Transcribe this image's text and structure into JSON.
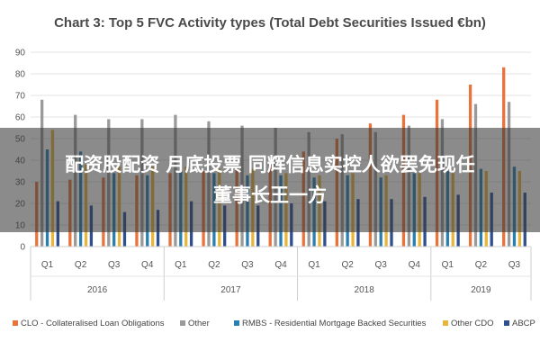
{
  "chart_data": {
    "type": "bar",
    "title": "Chart 3: Top 5 FVC Activity types (Total Debt Securities Issued €bn)",
    "ylim": [
      0,
      90
    ],
    "yticks": [
      0,
      10,
      20,
      30,
      40,
      50,
      60,
      70,
      80,
      90
    ],
    "grid": true,
    "legend_position": "bottom",
    "categories": [
      "Q1",
      "Q2",
      "Q3",
      "Q4",
      "Q1",
      "Q2",
      "Q3",
      "Q4",
      "Q1",
      "Q2",
      "Q3",
      "Q4",
      "Q1",
      "Q2",
      "Q3"
    ],
    "years": [
      {
        "label": "2016",
        "quarters": 4
      },
      {
        "label": "2017",
        "quarters": 4
      },
      {
        "label": "2018",
        "quarters": 4
      },
      {
        "label": "2019",
        "quarters": 3
      }
    ],
    "series": [
      {
        "name": "CLO - Collateralised Loan Obligations",
        "color": "#e8743b",
        "values": [
          30,
          31,
          32,
          33,
          34,
          35,
          37,
          38,
          44,
          50,
          57,
          61,
          68,
          75,
          83
        ]
      },
      {
        "name": "Other",
        "color": "#9a9a9a",
        "values": [
          68,
          61,
          59,
          59,
          61,
          58,
          56,
          55,
          53,
          52,
          53,
          56,
          59,
          66,
          67
        ]
      },
      {
        "name": "RMBS - Residential Mortgage Backed Securities",
        "color": "#2a7fb0",
        "values": [
          45,
          44,
          34,
          33,
          35,
          34,
          33,
          33,
          32,
          33,
          32,
          34,
          35,
          36,
          37
        ]
      },
      {
        "name": "Other CDO",
        "color": "#e8b63c",
        "values": [
          54,
          38,
          37,
          37,
          37,
          36,
          36,
          34,
          33,
          34,
          33,
          34,
          34,
          35,
          35
        ]
      },
      {
        "name": "ABCP",
        "color": "#2f4f8f",
        "values": [
          21,
          19,
          16,
          17,
          21,
          19,
          19,
          20,
          21,
          22,
          22,
          23,
          24,
          25,
          25
        ]
      }
    ]
  },
  "overlay": {
    "line1": "配资股配资 月底投票 同辉信息实控人欲罢免现任",
    "line2": "董事长王一方"
  }
}
